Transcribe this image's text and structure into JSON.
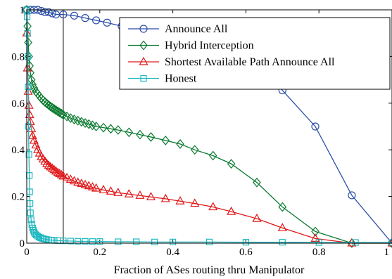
{
  "chart_data": {
    "type": "line",
    "title": "",
    "xlabel": "Fraction of ASes routing thru Manipulator",
    "ylabel": "",
    "xlim": [
      0,
      1
    ],
    "ylim": [
      0,
      1
    ],
    "x_ticks": [
      "0",
      "0.2",
      "0.4",
      "0.6",
      "0.8",
      "1"
    ],
    "y_ticks": [
      "0",
      "0.2",
      "0.4",
      "0.6",
      "0.8",
      "1"
    ],
    "x_tick_values": [
      0,
      0.2,
      0.4,
      0.6,
      0.8,
      1
    ],
    "y_tick_values": [
      0,
      0.2,
      0.4,
      0.6,
      0.8,
      1
    ],
    "grid": false,
    "legend_position": "top-right",
    "annotations": [
      {
        "type": "vertical-line",
        "x": 0.1,
        "color": "#000000"
      }
    ],
    "series": [
      {
        "name": "Announce All",
        "color": "#2b4ea8",
        "marker": "circle",
        "x": [
          0,
          0.01,
          0.02,
          0.03,
          0.04,
          0.05,
          0.06,
          0.07,
          0.08,
          0.1,
          0.13,
          0.16,
          0.19,
          0.22,
          0.26,
          0.3,
          0.35,
          0.4,
          0.45,
          0.5,
          0.56,
          0.62,
          0.7,
          0.79,
          0.89,
          1.0
        ],
        "y": [
          1.0,
          1.0,
          1.0,
          1.0,
          0.995,
          0.99,
          0.99,
          0.985,
          0.98,
          0.98,
          0.975,
          0.965,
          0.955,
          0.945,
          0.93,
          0.92,
          0.91,
          0.9,
          0.88,
          0.86,
          0.83,
          0.78,
          0.655,
          0.5,
          0.205,
          0.0
        ]
      },
      {
        "name": "Hybrid Interception",
        "color": "#0a7a2f",
        "marker": "diamond",
        "x": [
          0,
          0.002,
          0.004,
          0.006,
          0.008,
          0.01,
          0.013,
          0.016,
          0.02,
          0.025,
          0.03,
          0.035,
          0.04,
          0.045,
          0.05,
          0.055,
          0.06,
          0.065,
          0.07,
          0.075,
          0.08,
          0.085,
          0.09,
          0.095,
          0.1,
          0.11,
          0.12,
          0.13,
          0.14,
          0.15,
          0.16,
          0.17,
          0.18,
          0.19,
          0.21,
          0.23,
          0.25,
          0.28,
          0.31,
          0.34,
          0.38,
          0.42,
          0.46,
          0.51,
          0.56,
          0.63,
          0.7,
          0.79,
          0.89,
          1.0
        ],
        "y": [
          1.0,
          0.93,
          0.86,
          0.8,
          0.76,
          0.73,
          0.7,
          0.68,
          0.665,
          0.65,
          0.64,
          0.63,
          0.62,
          0.612,
          0.605,
          0.598,
          0.592,
          0.586,
          0.58,
          0.575,
          0.57,
          0.565,
          0.56,
          0.555,
          0.55,
          0.543,
          0.536,
          0.53,
          0.525,
          0.52,
          0.515,
          0.51,
          0.505,
          0.5,
          0.495,
          0.49,
          0.485,
          0.475,
          0.465,
          0.455,
          0.44,
          0.425,
          0.4,
          0.375,
          0.34,
          0.26,
          0.155,
          0.05,
          0.0,
          0.0
        ]
      },
      {
        "name": "Shortest Available Path Announce All",
        "color": "#e0191a",
        "marker": "triangle",
        "x": [
          0,
          0.002,
          0.004,
          0.006,
          0.008,
          0.01,
          0.013,
          0.016,
          0.02,
          0.025,
          0.03,
          0.035,
          0.04,
          0.045,
          0.05,
          0.055,
          0.06,
          0.065,
          0.07,
          0.075,
          0.08,
          0.085,
          0.09,
          0.095,
          0.1,
          0.11,
          0.12,
          0.13,
          0.14,
          0.15,
          0.16,
          0.17,
          0.18,
          0.19,
          0.21,
          0.23,
          0.25,
          0.28,
          0.31,
          0.34,
          0.38,
          0.42,
          0.46,
          0.51,
          0.56,
          0.63,
          0.7,
          0.79,
          0.89,
          1.0
        ],
        "y": [
          0.9,
          0.75,
          0.65,
          0.59,
          0.55,
          0.52,
          0.49,
          0.46,
          0.44,
          0.42,
          0.4,
          0.385,
          0.37,
          0.36,
          0.35,
          0.34,
          0.333,
          0.326,
          0.32,
          0.314,
          0.308,
          0.302,
          0.297,
          0.292,
          0.287,
          0.28,
          0.273,
          0.266,
          0.26,
          0.255,
          0.25,
          0.245,
          0.24,
          0.235,
          0.228,
          0.222,
          0.216,
          0.21,
          0.204,
          0.198,
          0.19,
          0.18,
          0.17,
          0.155,
          0.135,
          0.105,
          0.065,
          0.02,
          0.0,
          0.0
        ]
      },
      {
        "name": "Honest",
        "color": "#1fb8c0",
        "marker": "square",
        "x": [
          0,
          0.001,
          0.002,
          0.003,
          0.004,
          0.005,
          0.006,
          0.007,
          0.008,
          0.009,
          0.01,
          0.012,
          0.014,
          0.016,
          0.018,
          0.02,
          0.023,
          0.026,
          0.03,
          0.034,
          0.038,
          0.043,
          0.048,
          0.054,
          0.06,
          0.067,
          0.075,
          0.085,
          0.1,
          0.12,
          0.14,
          0.16,
          0.18,
          0.2,
          0.25,
          0.3,
          0.35,
          0.4,
          0.5,
          0.6,
          0.7,
          0.8,
          0.9,
          1.0
        ],
        "y": [
          1.0,
          0.97,
          0.9,
          0.8,
          0.67,
          0.5,
          0.38,
          0.29,
          0.22,
          0.17,
          0.13,
          0.1,
          0.08,
          0.065,
          0.055,
          0.047,
          0.04,
          0.035,
          0.03,
          0.026,
          0.023,
          0.02,
          0.018,
          0.016,
          0.014,
          0.013,
          0.012,
          0.011,
          0.01,
          0.009,
          0.008,
          0.008,
          0.007,
          0.007,
          0.006,
          0.006,
          0.005,
          0.005,
          0.005,
          0.004,
          0.004,
          0.003,
          0.003,
          0.003
        ]
      }
    ]
  }
}
